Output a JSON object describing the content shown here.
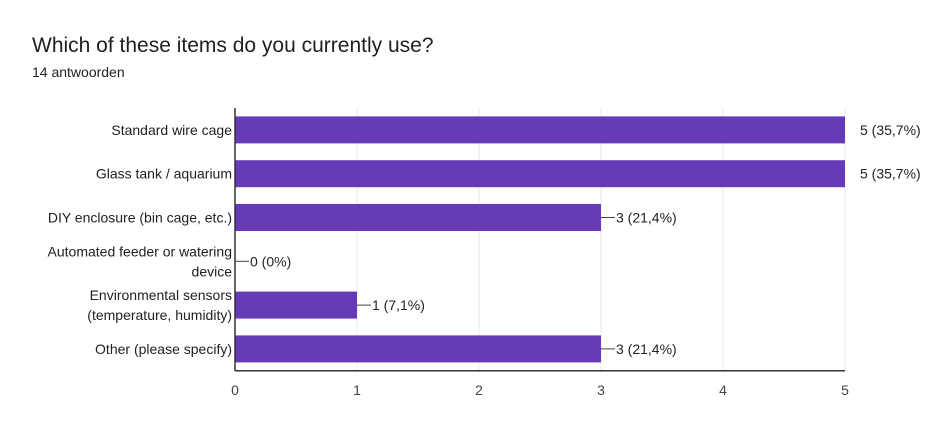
{
  "header": {
    "title": "Which of these items do you currently use?",
    "responses": "14 antwoorden"
  },
  "colors": {
    "bar": "#673ab7",
    "grid": "#e8e8e8",
    "axis": "#333333",
    "leader": "#444444"
  },
  "chart_data": {
    "type": "bar",
    "orientation": "horizontal",
    "categories": [
      [
        "Standard wire cage"
      ],
      [
        "Glass tank / aquarium"
      ],
      [
        "DIY enclosure (bin cage, etc.)"
      ],
      [
        "Automated feeder or watering",
        "device"
      ],
      [
        "Environmental sensors",
        "(temperature, humidity)"
      ],
      [
        "Other (please specify)"
      ]
    ],
    "values": [
      5,
      5,
      3,
      0,
      1,
      3
    ],
    "data_labels": [
      "5 (35,7%)",
      "5 (35,7%)",
      "3 (21,4%)",
      "0 (0%)",
      "1 (7,1%)",
      "3 (21,4%)"
    ],
    "xlim": [
      0,
      5
    ],
    "xticks": [
      "0",
      "1",
      "2",
      "3",
      "4",
      "5"
    ],
    "grid": true
  }
}
